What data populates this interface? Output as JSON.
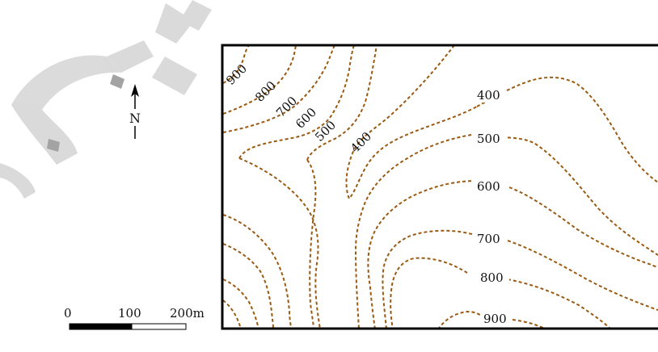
{
  "map": {
    "contour_values": [
      "900",
      "800",
      "700",
      "600",
      "500",
      "400"
    ],
    "labels_right": [
      "400",
      "500",
      "600",
      "700",
      "800",
      "900"
    ],
    "line_color": "#9b5a12",
    "frame_color": "#000000"
  },
  "north_arrow": {
    "label": "N",
    "icon": "north-arrow-icon"
  },
  "scale_bar": {
    "ticks": [
      "0",
      "100",
      "200m"
    ],
    "colors": {
      "filled": "#000000",
      "empty": "#ffffff"
    }
  },
  "watermark": {
    "text": "جع",
    "color": "#d0d0d0"
  }
}
